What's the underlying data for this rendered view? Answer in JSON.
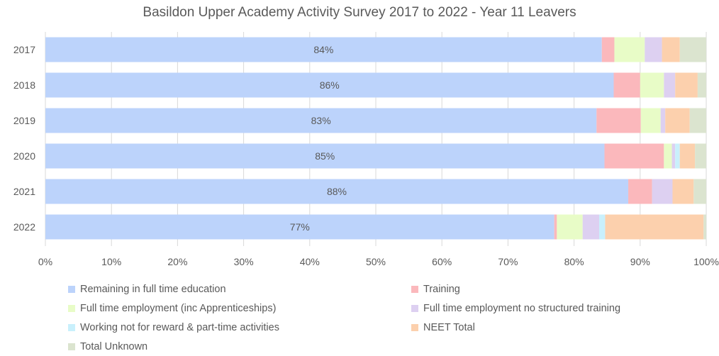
{
  "chart_data": {
    "type": "bar",
    "orientation": "horizontal",
    "stacked": true,
    "title": "Basildon Upper Academy Activity Survey 2017 to 2022 - Year 11 Leavers",
    "categories": [
      "2017",
      "2018",
      "2019",
      "2020",
      "2021",
      "2022"
    ],
    "series": [
      {
        "name": "Remaining in full time education",
        "color": "#bcd3fb",
        "values": [
          84.2,
          86.0,
          83.4,
          84.6,
          88.2,
          77.0
        ],
        "labels": [
          "84%",
          "86%",
          "83%",
          "85%",
          "88%",
          "77%"
        ]
      },
      {
        "name": "Training",
        "color": "#fbb8bc",
        "values": [
          1.9,
          4.0,
          6.7,
          9.0,
          3.6,
          0.4
        ],
        "labels": [
          "",
          "",
          "",
          "",
          "",
          ""
        ]
      },
      {
        "name": "Full time employment (inc Apprenticeships)",
        "color": "#e8fcc7",
        "values": [
          4.6,
          3.6,
          3.0,
          1.2,
          0.0,
          3.9
        ],
        "labels": [
          "",
          "",
          "",
          "",
          "",
          ""
        ]
      },
      {
        "name": "Full time employment no structured training",
        "color": "#ddd0f1",
        "values": [
          2.6,
          1.7,
          0.7,
          0.5,
          3.1,
          2.5
        ],
        "labels": [
          "",
          "",
          "",
          "",
          "",
          ""
        ]
      },
      {
        "name": "Working not for reward & part-time activities",
        "color": "#c9f0fc",
        "values": [
          0.0,
          0.0,
          0.0,
          0.7,
          0.0,
          0.9
        ],
        "labels": [
          "",
          "",
          "",
          "",
          "",
          ""
        ]
      },
      {
        "name": "NEET Total",
        "color": "#fcd0ad",
        "values": [
          2.7,
          3.4,
          3.7,
          2.3,
          3.2,
          14.9
        ],
        "labels": [
          "",
          "",
          "",
          "",
          "",
          ""
        ]
      },
      {
        "name": "Total Unknown",
        "color": "#dbe4cf",
        "values": [
          4.0,
          1.3,
          2.5,
          1.7,
          1.9,
          0.4
        ],
        "labels": [
          "",
          "",
          "",
          "",
          "",
          ""
        ]
      }
    ],
    "x_ticks": [
      "0%",
      "10%",
      "20%",
      "30%",
      "40%",
      "50%",
      "60%",
      "70%",
      "80%",
      "90%",
      "100%"
    ],
    "xlim": [
      0,
      100
    ],
    "grid": true,
    "legend_position": "bottom"
  }
}
